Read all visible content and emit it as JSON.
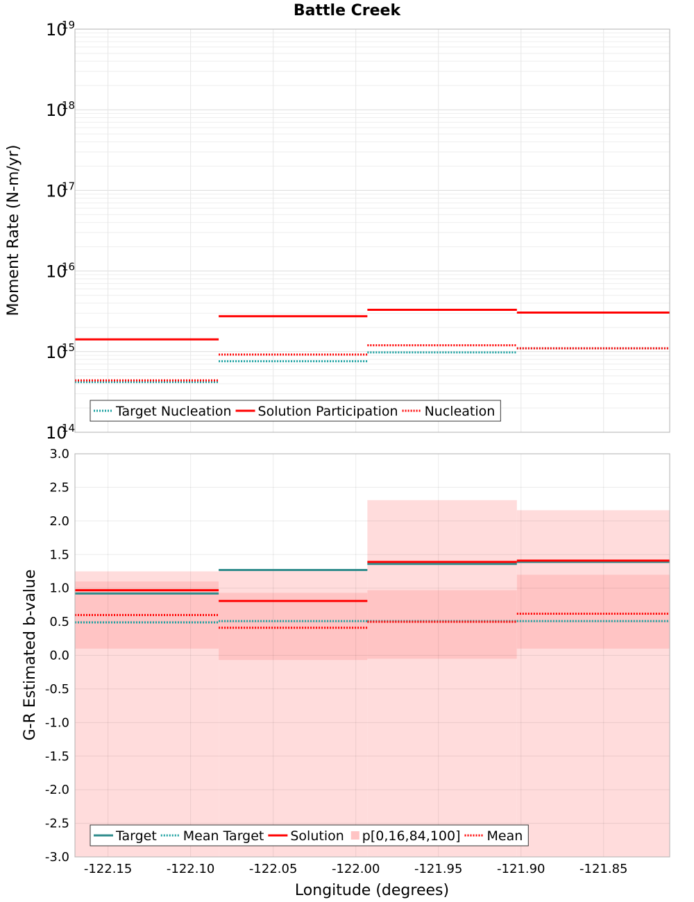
{
  "title": "Battle Creek",
  "colors": {
    "target": "#1aa0a0",
    "target_solid": "#2e8b8b",
    "solution": "#ff0000",
    "band_outer": "#ffdcdc",
    "band_inner": "#ffc4c4",
    "grid": "#e6e6e6",
    "frame": "#b0b0b0"
  },
  "chart_data": [
    {
      "type": "line",
      "step": true,
      "title": "Battle Creek",
      "ylabel": "Moment Rate (N-m/yr)",
      "yscale": "log",
      "ylim": [
        100000000000000.0,
        1e+19
      ],
      "xlim": [
        -122.17,
        -121.81
      ],
      "y_ticks": [
        {
          "base": "10",
          "exp": "14"
        },
        {
          "base": "10",
          "exp": "15"
        },
        {
          "base": "10",
          "exp": "16"
        },
        {
          "base": "10",
          "exp": "17"
        },
        {
          "base": "10",
          "exp": "18"
        },
        {
          "base": "10",
          "exp": "19"
        }
      ],
      "bin_edges": [
        -122.17,
        -122.083,
        -121.993,
        -121.9025,
        -121.81
      ],
      "series": [
        {
          "name": "Target Nucleation",
          "style": "dotted",
          "color": "#1aa0a0",
          "values": [
            420000000000000.0,
            760000000000000.0,
            980000000000000.0,
            1100000000000000.0
          ]
        },
        {
          "name": "Solution Participation",
          "style": "solid",
          "color": "#ff0000",
          "values": [
            1420000000000000.0,
            2750000000000000.0,
            3300000000000000.0,
            3050000000000000.0
          ]
        },
        {
          "name": "Nucleation",
          "style": "dotted",
          "color": "#ff0000",
          "values": [
            440000000000000.0,
            920000000000000.0,
            1200000000000000.0,
            1100000000000000.0
          ]
        }
      ],
      "legend": {
        "placement": "bottom-left",
        "items": [
          "Target Nucleation",
          "Solution Participation",
          "Nucleation"
        ]
      }
    },
    {
      "type": "line",
      "step": true,
      "xlabel": "Longitude (degrees)",
      "ylabel": "G-R Estimated b-value",
      "ylim": [
        -3.0,
        3.0
      ],
      "xlim": [
        -122.17,
        -121.81
      ],
      "y_ticks": [
        "3.0",
        "2.5",
        "2.0",
        "1.5",
        "1.0",
        "0.5",
        "0.0",
        "-0.5",
        "-1.0",
        "-1.5",
        "-2.0",
        "-2.5",
        "-3.0"
      ],
      "x_ticks": [
        "-122.15",
        "-122.10",
        "-122.05",
        "-122.00",
        "-121.95",
        "-121.90",
        "-121.85"
      ],
      "bin_edges": [
        -122.17,
        -122.083,
        -121.993,
        -121.9025,
        -121.81
      ],
      "percentile_band": {
        "name": "p[0,16,84,100]",
        "p0": [
          -3.0,
          -3.0,
          -3.0,
          -3.0
        ],
        "p16": [
          0.1,
          -0.07,
          -0.05,
          0.1
        ],
        "p84": [
          1.1,
          0.93,
          0.97,
          1.2
        ],
        "p100": [
          1.25,
          1.27,
          2.31,
          2.16
        ]
      },
      "series": [
        {
          "name": "Target",
          "style": "solid",
          "color": "#2e8b8b",
          "values": [
            0.92,
            1.27,
            1.36,
            1.39
          ]
        },
        {
          "name": "Mean Target",
          "style": "dotted",
          "color": "#1aa0a0",
          "values": [
            0.49,
            0.51,
            0.51,
            0.51
          ]
        },
        {
          "name": "Solution",
          "style": "solid",
          "color": "#ff0000",
          "values": [
            0.97,
            0.81,
            1.39,
            1.41
          ]
        },
        {
          "name": "Mean",
          "style": "dotted",
          "color": "#ff0000",
          "values": [
            0.6,
            0.41,
            0.5,
            0.62
          ]
        }
      ],
      "legend": {
        "placement": "bottom-left",
        "items": [
          "Target",
          "Mean Target",
          "Solution",
          "p[0,16,84,100]",
          "Mean"
        ]
      }
    }
  ]
}
